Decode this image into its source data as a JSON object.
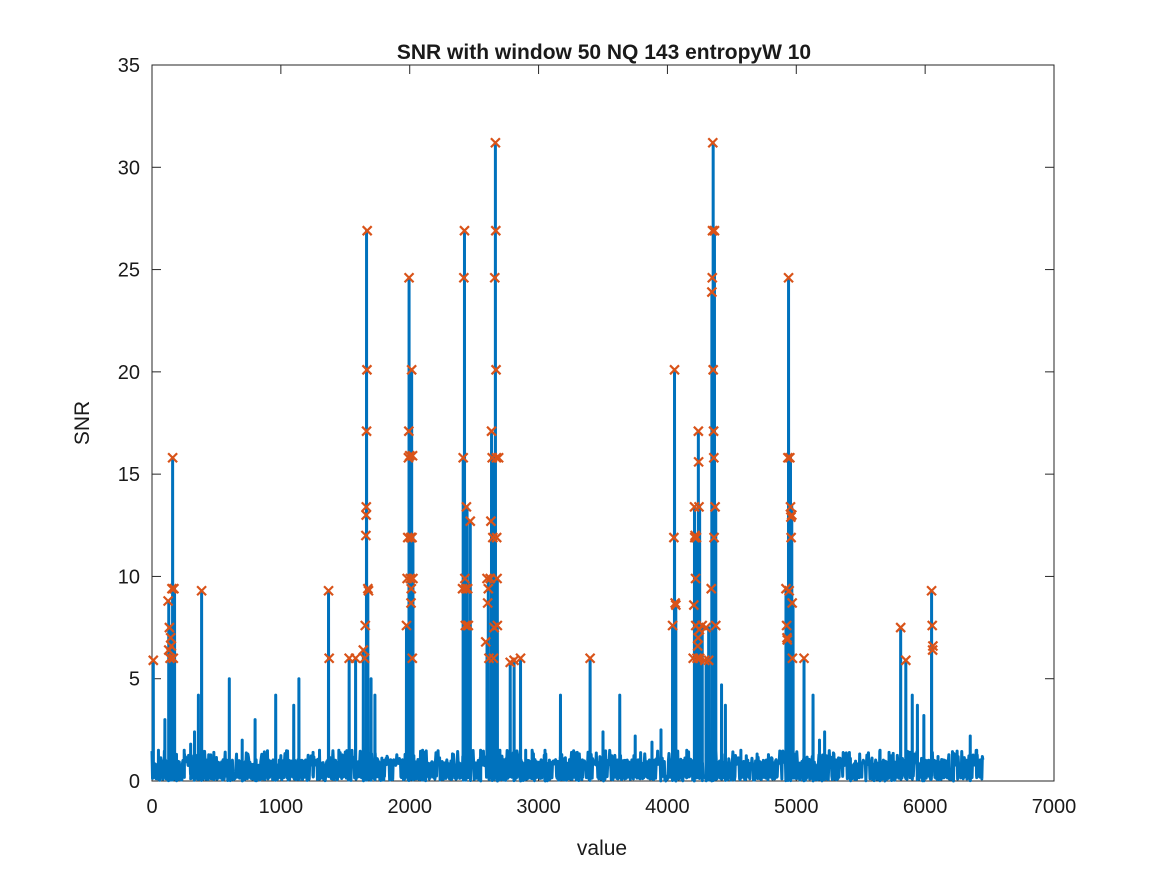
{
  "chart_data": {
    "type": "line",
    "title": "SNR with window 50  NQ 143  entropyW 10",
    "xlabel": "value",
    "ylabel": "SNR",
    "xlim": [
      0,
      7000
    ],
    "ylim": [
      0,
      35
    ],
    "x_ticks": [
      0,
      1000,
      2000,
      3000,
      4000,
      5000,
      6000,
      7000
    ],
    "y_ticks": [
      0,
      5,
      10,
      15,
      20,
      25,
      30,
      35
    ],
    "x_tick_labels": [
      "0",
      "1000",
      "2000",
      "3000",
      "4000",
      "5000",
      "6000",
      "7000"
    ],
    "y_tick_labels": [
      "0",
      "5",
      "10",
      "15",
      "20",
      "25",
      "30",
      "35"
    ],
    "grid": false,
    "box": true,
    "line_color": "#0072bd",
    "marker_color": "#d95319",
    "series": [
      {
        "style": "line",
        "x_start": 0,
        "x_end": 6450,
        "baseline_level": 0.9,
        "spikes": [
          [
            10,
            5.9
          ],
          [
            50,
            1.5
          ],
          [
            100,
            3.0
          ],
          [
            130,
            8.8
          ],
          [
            145,
            7.5
          ],
          [
            160,
            15.8
          ],
          [
            175,
            9.4
          ],
          [
            190,
            1.3
          ],
          [
            250,
            1.5
          ],
          [
            300,
            1.8
          ],
          [
            330,
            2.4
          ],
          [
            360,
            4.2
          ],
          [
            385,
            9.3
          ],
          [
            480,
            1.4
          ],
          [
            600,
            5.0
          ],
          [
            700,
            2.0
          ],
          [
            800,
            3.0
          ],
          [
            960,
            4.2
          ],
          [
            1100,
            3.7
          ],
          [
            1140,
            5.0
          ],
          [
            1250,
            1.4
          ],
          [
            1300,
            1.5
          ],
          [
            1370,
            9.3
          ],
          [
            1450,
            1.5
          ],
          [
            1530,
            6.0
          ],
          [
            1580,
            6.0
          ],
          [
            1640,
            6.4
          ],
          [
            1665,
            26.9
          ],
          [
            1675,
            9.4
          ],
          [
            1700,
            5.0
          ],
          [
            1730,
            4.2
          ],
          [
            1800,
            1.0
          ],
          [
            1975,
            7.6
          ],
          [
            1995,
            24.6
          ],
          [
            2005,
            15.9
          ],
          [
            2015,
            20.1
          ],
          [
            2025,
            11.9
          ],
          [
            2100,
            1.5
          ],
          [
            2415,
            15.8
          ],
          [
            2425,
            26.9
          ],
          [
            2435,
            9.9
          ],
          [
            2445,
            13.4
          ],
          [
            2455,
            7.6
          ],
          [
            2470,
            12.7
          ],
          [
            2550,
            1.5
          ],
          [
            2600,
            6.8
          ],
          [
            2610,
            9.9
          ],
          [
            2635,
            17.1
          ],
          [
            2650,
            15.8
          ],
          [
            2665,
            31.2
          ],
          [
            2680,
            9.9
          ],
          [
            2700,
            1.5
          ],
          [
            2780,
            5.8
          ],
          [
            2810,
            5.9
          ],
          [
            2860,
            6.0
          ],
          [
            2900,
            1.5
          ],
          [
            2950,
            1.5
          ],
          [
            3050,
            1.5
          ],
          [
            3170,
            4.2
          ],
          [
            3300,
            1.4
          ],
          [
            3400,
            6.0
          ],
          [
            3500,
            2.4
          ],
          [
            3630,
            4.2
          ],
          [
            3750,
            2.2
          ],
          [
            3880,
            1.9
          ],
          [
            3950,
            2.5
          ],
          [
            4040,
            7.6
          ],
          [
            4055,
            20.1
          ],
          [
            4065,
            8.7
          ],
          [
            4150,
            1.5
          ],
          [
            4210,
            13.4
          ],
          [
            4225,
            11.9
          ],
          [
            4240,
            17.1
          ],
          [
            4250,
            13.4
          ],
          [
            4270,
            7.6
          ],
          [
            4300,
            5.9
          ],
          [
            4320,
            7.5
          ],
          [
            4345,
            23.9
          ],
          [
            4355,
            31.2
          ],
          [
            4365,
            26.9
          ],
          [
            4375,
            13.4
          ],
          [
            4420,
            4.7
          ],
          [
            4450,
            3.7
          ],
          [
            4570,
            1.5
          ],
          [
            4920,
            9.4
          ],
          [
            4940,
            24.6
          ],
          [
            4955,
            15.8
          ],
          [
            4965,
            13.4
          ],
          [
            4975,
            8.7
          ],
          [
            5060,
            6.0
          ],
          [
            5130,
            4.2
          ],
          [
            5180,
            2.0
          ],
          [
            5220,
            2.4
          ],
          [
            5420,
            1.1
          ],
          [
            5650,
            1.5
          ],
          [
            5720,
            1.4
          ],
          [
            5810,
            7.5
          ],
          [
            5850,
            5.9
          ],
          [
            5900,
            4.2
          ],
          [
            5940,
            3.7
          ],
          [
            5990,
            3.2
          ],
          [
            6050,
            9.3
          ],
          [
            6100,
            1.2
          ],
          [
            6350,
            2.2
          ],
          [
            6400,
            1.5
          ],
          [
            6430,
            1.0
          ]
        ]
      },
      {
        "style": "marker-x",
        "points": [
          [
            10,
            5.9
          ],
          [
            125,
            8.8
          ],
          [
            130,
            6.4
          ],
          [
            135,
            7.5
          ],
          [
            140,
            6.0
          ],
          [
            145,
            7.0
          ],
          [
            150,
            6.6
          ],
          [
            155,
            9.4
          ],
          [
            160,
            15.8
          ],
          [
            165,
            6.0
          ],
          [
            170,
            9.4
          ],
          [
            385,
            9.3
          ],
          [
            1370,
            9.3
          ],
          [
            1375,
            6.0
          ],
          [
            1530,
            6.0
          ],
          [
            1580,
            6.0
          ],
          [
            1640,
            6.4
          ],
          [
            1650,
            6.0
          ],
          [
            1655,
            7.6
          ],
          [
            1660,
            12.0
          ],
          [
            1662,
            13.0
          ],
          [
            1663,
            13.4
          ],
          [
            1665,
            17.1
          ],
          [
            1668,
            20.1
          ],
          [
            1670,
            26.9
          ],
          [
            1675,
            9.4
          ],
          [
            1680,
            9.3
          ],
          [
            1975,
            7.6
          ],
          [
            1980,
            9.9
          ],
          [
            1985,
            11.9
          ],
          [
            1990,
            15.8
          ],
          [
            1993,
            17.1
          ],
          [
            1995,
            24.6
          ],
          [
            2000,
            15.9
          ],
          [
            2005,
            9.9
          ],
          [
            2008,
            11.9
          ],
          [
            2010,
            8.7
          ],
          [
            2012,
            9.4
          ],
          [
            2015,
            20.1
          ],
          [
            2018,
            11.9
          ],
          [
            2020,
            6.0
          ],
          [
            2022,
            15.9
          ],
          [
            2025,
            9.9
          ],
          [
            2410,
            9.4
          ],
          [
            2415,
            15.8
          ],
          [
            2420,
            24.6
          ],
          [
            2425,
            26.9
          ],
          [
            2428,
            9.9
          ],
          [
            2432,
            7.6
          ],
          [
            2435,
            9.4
          ],
          [
            2440,
            13.4
          ],
          [
            2445,
            7.6
          ],
          [
            2450,
            9.4
          ],
          [
            2455,
            7.6
          ],
          [
            2470,
            12.7
          ],
          [
            2590,
            6.8
          ],
          [
            2600,
            9.9
          ],
          [
            2605,
            8.7
          ],
          [
            2610,
            9.4
          ],
          [
            2615,
            6.0
          ],
          [
            2625,
            9.9
          ],
          [
            2630,
            12.7
          ],
          [
            2635,
            17.1
          ],
          [
            2640,
            15.8
          ],
          [
            2645,
            11.9
          ],
          [
            2650,
            6.0
          ],
          [
            2655,
            7.5
          ],
          [
            2660,
            24.6
          ],
          [
            2665,
            31.2
          ],
          [
            2668,
            26.9
          ],
          [
            2670,
            20.1
          ],
          [
            2673,
            15.8
          ],
          [
            2675,
            11.9
          ],
          [
            2678,
            9.9
          ],
          [
            2680,
            7.6
          ],
          [
            2690,
            15.8
          ],
          [
            2780,
            5.8
          ],
          [
            2810,
            5.9
          ],
          [
            2860,
            6.0
          ],
          [
            3400,
            6.0
          ],
          [
            4040,
            7.6
          ],
          [
            4050,
            11.9
          ],
          [
            4055,
            20.1
          ],
          [
            4060,
            8.7
          ],
          [
            4065,
            8.6
          ],
          [
            4200,
            6.0
          ],
          [
            4205,
            8.6
          ],
          [
            4210,
            13.4
          ],
          [
            4212,
            11.9
          ],
          [
            4215,
            12.0
          ],
          [
            4218,
            9.9
          ],
          [
            4220,
            7.6
          ],
          [
            4225,
            11.9
          ],
          [
            4230,
            6.0
          ],
          [
            4235,
            6.6
          ],
          [
            4238,
            7.0
          ],
          [
            4240,
            17.1
          ],
          [
            4242,
            15.6
          ],
          [
            4245,
            13.4
          ],
          [
            4248,
            7.4
          ],
          [
            4250,
            6.0
          ],
          [
            4270,
            7.6
          ],
          [
            4290,
            5.9
          ],
          [
            4300,
            7.5
          ],
          [
            4320,
            5.9
          ],
          [
            4340,
            9.4
          ],
          [
            4345,
            23.9
          ],
          [
            4348,
            24.6
          ],
          [
            4350,
            26.9
          ],
          [
            4352,
            31.2
          ],
          [
            4355,
            20.1
          ],
          [
            4358,
            17.1
          ],
          [
            4360,
            15.8
          ],
          [
            4362,
            11.9
          ],
          [
            4365,
            26.9
          ],
          [
            4370,
            13.4
          ],
          [
            4375,
            7.6
          ],
          [
            4920,
            9.4
          ],
          [
            4925,
            7.6
          ],
          [
            4928,
            7.0
          ],
          [
            4930,
            6.9
          ],
          [
            4935,
            15.8
          ],
          [
            4940,
            24.6
          ],
          [
            4945,
            9.3
          ],
          [
            4950,
            15.8
          ],
          [
            4955,
            13.4
          ],
          [
            4958,
            12.9
          ],
          [
            4960,
            11.9
          ],
          [
            4965,
            13.0
          ],
          [
            4968,
            8.7
          ],
          [
            4970,
            6.0
          ],
          [
            5060,
            6.0
          ],
          [
            5810,
            7.5
          ],
          [
            5850,
            5.9
          ],
          [
            6050,
            9.3
          ],
          [
            6055,
            7.6
          ],
          [
            6058,
            6.4
          ],
          [
            6060,
            6.6
          ]
        ]
      }
    ]
  }
}
